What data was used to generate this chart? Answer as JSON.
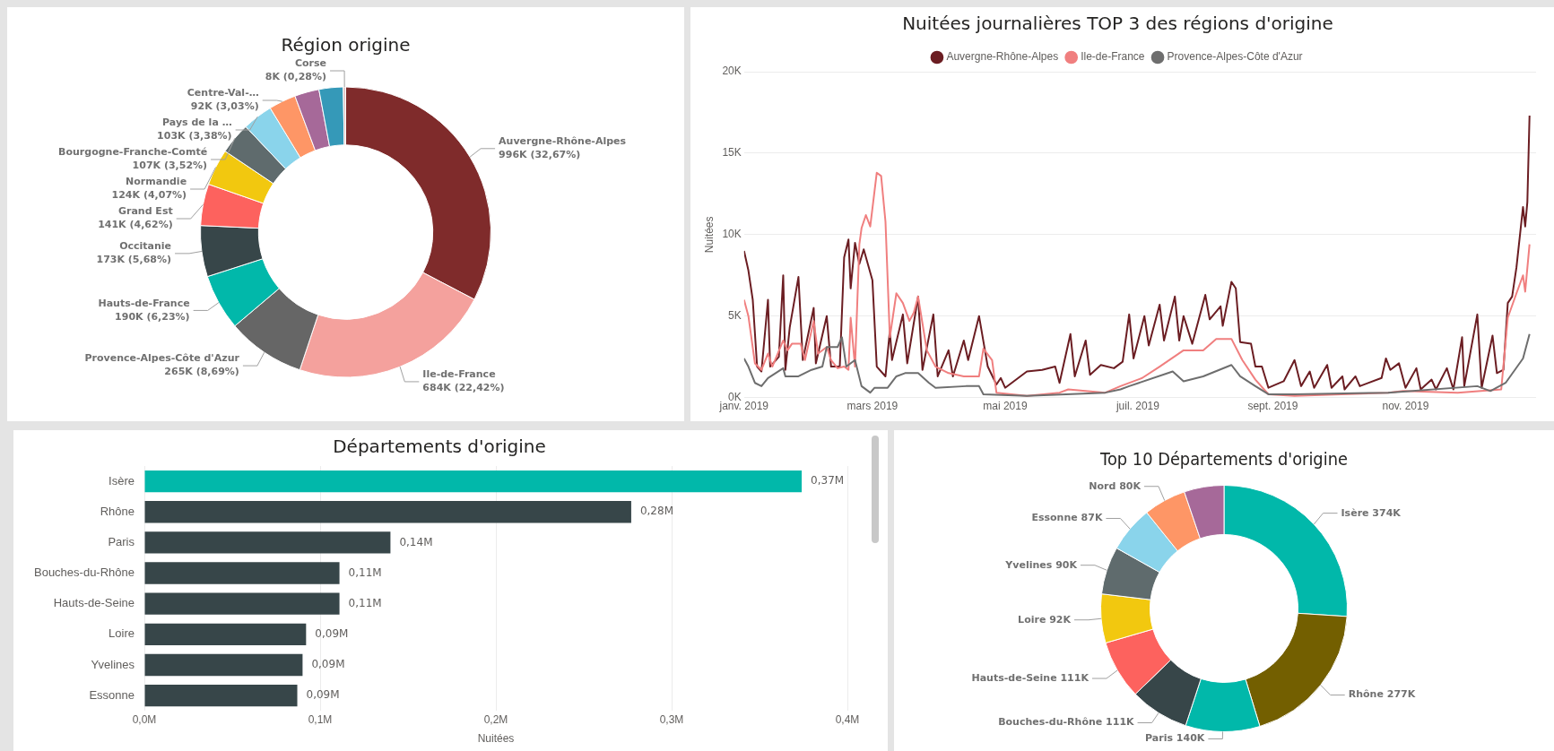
{
  "chart_data": [
    {
      "type": "donut",
      "title": "Région origine",
      "categories": [
        "Auvergne-Rhône-Alpes",
        "Ile-de-France",
        "Provence-Alpes-Côte d'Azur",
        "Hauts-de-France",
        "Occitanie",
        "Grand Est",
        "Normandie",
        "Bourgogne-Franche-Comté",
        "Pays de la …",
        "Centre-Val-…",
        null,
        null,
        "Corse"
      ],
      "values": [
        996000,
        684000,
        265000,
        190000,
        173000,
        141000,
        124000,
        107000,
        103000,
        92000,
        83000,
        82000,
        8000
      ],
      "value_labels": [
        "996K (32,67%)",
        "684K (22,42%)",
        "265K (8,69%)",
        "190K (6,23%)",
        "173K (5,68%)",
        "141K (4,62%)",
        "124K (4,07%)",
        "107K (3,52%)",
        "103K (3,38%)",
        "92K (3,03%)",
        null,
        null,
        "8K (0,28%)"
      ],
      "colors": [
        "#7f2b2b",
        "#f4a19d",
        "#666666",
        "#01b8aa",
        "#374649",
        "#fd625e",
        "#f2c80f",
        "#5f6b6d",
        "#8ad4eb",
        "#fe9666",
        "#a66999",
        "#3599b8",
        "#dfbfbf"
      ]
    },
    {
      "type": "line",
      "title": "Nuitées journalières TOP 3 des régions d'origine",
      "ylabel": "Nuitées",
      "legend": "top",
      "grid": "y",
      "xlim": [
        "2019-01-01",
        "2019-12-31"
      ],
      "xticks": [
        {
          "value": "2019-01-01",
          "label": "janv. 2019"
        },
        {
          "value": "2019-03-01",
          "label": "mars 2019"
        },
        {
          "value": "2019-05-01",
          "label": "mai 2019"
        },
        {
          "value": "2019-07-01",
          "label": "juil. 2019"
        },
        {
          "value": "2019-09-01",
          "label": "sept. 2019"
        },
        {
          "value": "2019-11-01",
          "label": "nov. 2019"
        }
      ],
      "ylim": [
        0,
        20000
      ],
      "yticks": [
        {
          "value": 0,
          "label": "0K"
        },
        {
          "value": 5000,
          "label": "5K"
        },
        {
          "value": 10000,
          "label": "10K"
        },
        {
          "value": 15000,
          "label": "15K"
        },
        {
          "value": 20000,
          "label": "20K"
        }
      ],
      "series": [
        {
          "name": "Auvergne-Rhône-Alpes",
          "color": "#6b1d22",
          "x": [
            "2019-01-01",
            "2019-01-03",
            "2019-01-05",
            "2019-01-07",
            "2019-01-09",
            "2019-01-12",
            "2019-01-13",
            "2019-01-17",
            "2019-01-19",
            "2019-01-20",
            "2019-01-22",
            "2019-01-26",
            "2019-01-28",
            "2019-02-02",
            "2019-02-03",
            "2019-02-08",
            "2019-02-10",
            "2019-02-14",
            "2019-02-16",
            "2019-02-18",
            "2019-02-19",
            "2019-02-21",
            "2019-02-23",
            "2019-02-25",
            "2019-03-01",
            "2019-03-03",
            "2019-03-07",
            "2019-03-09",
            "2019-03-10",
            "2019-03-15",
            "2019-03-17",
            "2019-03-22",
            "2019-03-24",
            "2019-03-29",
            "2019-03-31",
            "2019-04-05",
            "2019-04-07",
            "2019-04-12",
            "2019-04-14",
            "2019-04-19",
            "2019-04-23",
            "2019-04-27",
            "2019-04-29",
            "2019-05-01",
            "2019-05-11",
            "2019-05-18",
            "2019-05-24",
            "2019-05-26",
            "2019-05-31",
            "2019-06-02",
            "2019-06-07",
            "2019-06-09",
            "2019-06-14",
            "2019-06-20",
            "2019-06-24",
            "2019-06-27",
            "2019-06-29",
            "2019-07-04",
            "2019-07-06",
            "2019-07-11",
            "2019-07-13",
            "2019-07-18",
            "2019-07-20",
            "2019-07-22",
            "2019-07-26",
            "2019-08-01",
            "2019-08-03",
            "2019-08-08",
            "2019-08-09",
            "2019-08-13",
            "2019-08-15",
            "2019-08-17",
            "2019-08-22",
            "2019-08-24",
            "2019-08-27",
            "2019-08-30",
            "2019-09-06",
            "2019-09-11",
            "2019-09-14",
            "2019-09-18",
            "2019-09-20",
            "2019-09-26",
            "2019-09-28",
            "2019-10-03",
            "2019-10-04",
            "2019-10-09",
            "2019-10-11",
            "2019-10-21",
            "2019-10-23",
            "2019-10-25",
            "2019-10-29",
            "2019-11-01",
            "2019-11-06",
            "2019-11-08",
            "2019-11-13",
            "2019-11-15",
            "2019-11-20",
            "2019-11-23",
            "2019-11-27",
            "2019-11-28",
            "2019-12-04",
            "2019-12-06",
            "2019-12-11",
            "2019-12-13",
            "2019-12-16",
            "2019-12-18",
            "2019-12-20",
            "2019-12-22",
            "2019-12-25",
            "2019-12-26",
            "2019-12-27",
            "2019-12-28"
          ],
          "values": [
            9000,
            7800,
            6000,
            1900,
            1600,
            6000,
            1900,
            2500,
            7500,
            1700,
            4300,
            7400,
            2300,
            5500,
            2100,
            5000,
            1900,
            1900,
            8600,
            9700,
            6700,
            9500,
            8200,
            9100,
            7200,
            1900,
            1300,
            4100,
            2300,
            5100,
            2100,
            6200,
            1700,
            5100,
            1300,
            2900,
            1300,
            3500,
            2300,
            5000,
            1900,
            800,
            1200,
            600,
            1600,
            1700,
            1900,
            900,
            3900,
            1300,
            3500,
            1400,
            2000,
            1800,
            2200,
            5100,
            2400,
            5000,
            3200,
            5700,
            3500,
            6200,
            3500,
            5000,
            3300,
            6300,
            4800,
            5600,
            4400,
            7100,
            6700,
            3400,
            3300,
            1900,
            1900,
            600,
            1000,
            2300,
            700,
            1600,
            600,
            2000,
            600,
            1300,
            500,
            1300,
            700,
            1200,
            2400,
            1700,
            2100,
            600,
            1800,
            500,
            1100,
            500,
            1800,
            500,
            3700,
            700,
            5100,
            600,
            3800,
            1500,
            1700,
            5800,
            6200,
            8000,
            11700,
            10500,
            12000,
            17300
          ]
        },
        {
          "name": "Ile-de-France",
          "color": "#f07f7f",
          "x": [
            "2019-01-01",
            "2019-01-03",
            "2019-01-06",
            "2019-01-09",
            "2019-01-12",
            "2019-01-14",
            "2019-01-19",
            "2019-01-21",
            "2019-01-23",
            "2019-01-27",
            "2019-01-29",
            "2019-02-02",
            "2019-02-04",
            "2019-02-08",
            "2019-02-10",
            "2019-02-13",
            "2019-02-16",
            "2019-02-18",
            "2019-02-19",
            "2019-02-21",
            "2019-02-23",
            "2019-02-24",
            "2019-02-26",
            "2019-02-28",
            "2019-03-03",
            "2019-03-05",
            "2019-03-07",
            "2019-03-09",
            "2019-03-12",
            "2019-03-15",
            "2019-03-18",
            "2019-03-20",
            "2019-03-22",
            "2019-03-26",
            "2019-03-30",
            "2019-04-05",
            "2019-04-12",
            "2019-04-19",
            "2019-04-21",
            "2019-04-25",
            "2019-04-27",
            "2019-05-11",
            "2019-05-26",
            "2019-05-30",
            "2019-06-16",
            "2019-06-23",
            "2019-07-03",
            "2019-07-11",
            "2019-07-22",
            "2019-07-31",
            "2019-08-06",
            "2019-08-13",
            "2019-08-18",
            "2019-08-24",
            "2019-08-30",
            "2019-09-11",
            "2019-10-24",
            "2019-10-31",
            "2019-11-25",
            "2019-12-15",
            "2019-12-18",
            "2019-12-22",
            "2019-12-25",
            "2019-12-26",
            "2019-12-28"
          ],
          "values": [
            6000,
            5000,
            2100,
            1700,
            2700,
            1900,
            3500,
            2900,
            3300,
            3300,
            2300,
            4700,
            2700,
            3100,
            2300,
            1800,
            1900,
            1700,
            4900,
            1900,
            9400,
            10400,
            11200,
            10500,
            13800,
            13600,
            10800,
            3700,
            6400,
            5800,
            4700,
            5200,
            6200,
            2900,
            1900,
            1500,
            1300,
            1300,
            3000,
            2300,
            300,
            100,
            300,
            500,
            300,
            700,
            1200,
            1900,
            2900,
            2900,
            3600,
            3600,
            2300,
            1100,
            200,
            100,
            300,
            400,
            300,
            500,
            4900,
            6400,
            7500,
            6500,
            9400
          ]
        },
        {
          "name": "Provence-Alpes-Côte d'Azur",
          "color": "#6e6e6e",
          "x": [
            "2019-01-01",
            "2019-01-03",
            "2019-01-06",
            "2019-01-09",
            "2019-01-12",
            "2019-01-19",
            "2019-01-20",
            "2019-01-26",
            "2019-02-01",
            "2019-02-06",
            "2019-02-08",
            "2019-02-13",
            "2019-02-15",
            "2019-02-17",
            "2019-02-21",
            "2019-02-24",
            "2019-02-28",
            "2019-03-02",
            "2019-03-08",
            "2019-03-12",
            "2019-03-16",
            "2019-03-22",
            "2019-03-27",
            "2019-03-30",
            "2019-04-13",
            "2019-04-19",
            "2019-04-21",
            "2019-05-11",
            "2019-06-16",
            "2019-06-23",
            "2019-06-27",
            "2019-07-17",
            "2019-07-22",
            "2019-07-31",
            "2019-08-13",
            "2019-08-17",
            "2019-08-24",
            "2019-08-30",
            "2019-09-11",
            "2019-10-24",
            "2019-12-04",
            "2019-12-10",
            "2019-12-17",
            "2019-12-25",
            "2019-12-28"
          ],
          "values": [
            2400,
            1900,
            900,
            700,
            1200,
            1800,
            1300,
            1300,
            1700,
            1900,
            3100,
            3100,
            3700,
            1900,
            2300,
            700,
            300,
            600,
            600,
            1300,
            1500,
            1500,
            900,
            600,
            700,
            700,
            200,
            100,
            300,
            500,
            700,
            1600,
            1000,
            1300,
            2000,
            1300,
            700,
            200,
            200,
            300,
            700,
            400,
            900,
            2400,
            3900
          ]
        }
      ]
    },
    {
      "type": "bar",
      "orientation": "horizontal",
      "title": "Départements d'origine",
      "categories": [
        "Isère",
        "Rhône",
        "Paris",
        "Bouches-du-Rhône",
        "Hauts-de-Seine",
        "Loire",
        "Yvelines",
        "Essonne"
      ],
      "values": [
        0.374,
        0.277,
        0.14,
        0.111,
        0.111,
        0.092,
        0.09,
        0.087
      ],
      "value_labels": [
        "0,37M",
        "0,28M",
        "0,14M",
        "0,11M",
        "0,11M",
        "0,09M",
        "0,09M",
        "0,09M"
      ],
      "colors": [
        "#01b8aa",
        "#374649",
        "#374649",
        "#374649",
        "#374649",
        "#374649",
        "#374649",
        "#374649"
      ],
      "xlabel": "Nuitées",
      "xlim": [
        0,
        0.4
      ],
      "xticks": [
        {
          "value": 0,
          "label": "0,0M"
        },
        {
          "value": 0.1,
          "label": "0,1M"
        },
        {
          "value": 0.2,
          "label": "0,2M"
        },
        {
          "value": 0.3,
          "label": "0,3M"
        },
        {
          "value": 0.4,
          "label": "0,4M"
        }
      ],
      "grid": "x"
    },
    {
      "type": "donut",
      "title": "Top 10 Départements d'origine",
      "categories": [
        "Isère",
        "Rhône",
        "Paris",
        "Bouches-du-Rhône",
        "Hauts-de-Seine",
        "Loire",
        "Yvelines",
        "Essonne",
        "Nord",
        null
      ],
      "values": [
        374000,
        277000,
        140000,
        111000,
        111000,
        92000,
        90000,
        87000,
        80000,
        75000
      ],
      "value_labels": [
        "374K",
        "277K",
        "140K",
        "111K",
        "111K",
        "92K",
        "90K",
        "87K",
        "80K",
        null
      ],
      "colors": [
        "#01b8aa",
        "#735f00",
        "#01b8aa",
        "#374649",
        "#fd625e",
        "#f2c80f",
        "#5f6b6d",
        "#8ad4eb",
        "#fe9666",
        "#a66999"
      ]
    }
  ]
}
